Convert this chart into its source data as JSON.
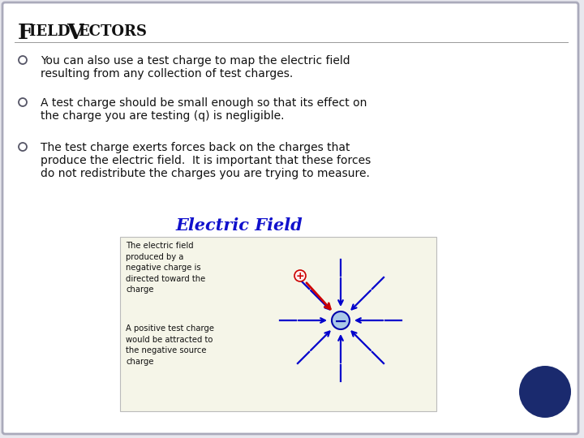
{
  "title_F": "F",
  "title_ield": "IELD",
  "title_V": "V",
  "title_ectors": "ECTORS",
  "bg_color": "#e8e8ee",
  "slide_bg": "#ffffff",
  "border_color": "#aaaabb",
  "bullet_color": "#555566",
  "text_color": "#111111",
  "bullets": [
    "You can also use a test charge to map the electric field\nresulting from any collection of test charges.",
    "A test charge should be small enough so that its effect on\nthe charge you are testing (q) is negligible.",
    "The test charge exerts forces back on the charges that\nproduce the electric field.  It is important that these forces\ndo not redistribute the charges you are trying to measure."
  ],
  "ef_title": "Electric Field",
  "ef_title_color": "#1111cc",
  "left_text1": "The electric field\nproduced by a\nnegative charge is\ndirected toward the\ncharge",
  "left_text2": "A positive test charge\nwould be attracted to\nthe negative source\ncharge",
  "arrow_color": "#0000cc",
  "red_arrow_color": "#cc0000",
  "dark_circle_color": "#1a2a6e",
  "diagram_bg": "#f5f5e8",
  "diagram_border": "#bbbbbb"
}
